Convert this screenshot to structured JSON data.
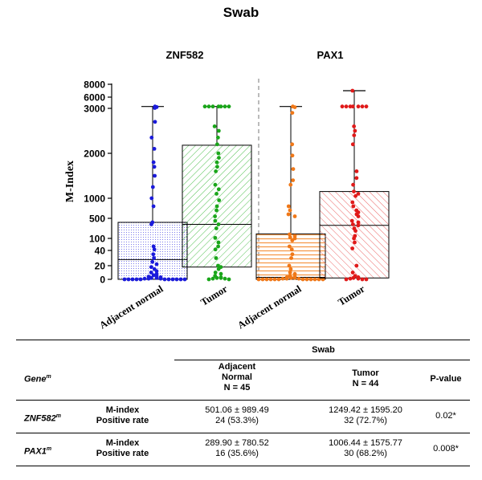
{
  "title": "Swab",
  "chart_data": {
    "type": "box+scatter",
    "title": "Swab",
    "ylabel": "M-Index",
    "yticks": [
      0,
      20,
      40,
      100,
      500,
      1000,
      2000,
      3000,
      6000,
      8000
    ],
    "panels": [
      {
        "gene": "ZNF582",
        "groups": [
          {
            "name": "Adjacent normal",
            "color": "#1a1adb",
            "fill_pattern": "dots",
            "q1": 0,
            "median": 28,
            "q3": 420,
            "max": 3500,
            "points": [
              3500,
              3350,
              3100,
              2700,
              2350,
              2100,
              1800,
              1700,
              1500,
              1250,
              1000,
              800,
              420,
              380,
              60,
              45,
              35,
              30,
              25,
              22,
              18,
              15,
              12,
              10,
              8,
              6,
              5,
              4,
              3,
              2,
              2,
              1,
              1,
              1,
              0,
              0,
              0,
              0,
              0,
              0,
              0,
              0,
              0,
              0,
              0
            ]
          },
          {
            "name": "Tumor",
            "color": "#1aa61a",
            "fill_pattern": "diagonal",
            "q1": 18,
            "median": 380,
            "q3": 2180,
            "max": 3500,
            "points": [
              3500,
              3500,
              3500,
              3500,
              3500,
              3500,
              3500,
              2600,
              2500,
              2350,
              2200,
              2000,
              1900,
              1800,
              1700,
              1600,
              1300,
              1200,
              1100,
              950,
              800,
              700,
              550,
              450,
              380,
              300,
              110,
              80,
              60,
              45,
              30,
              20,
              18,
              15,
              10,
              8,
              5,
              3,
              2,
              2,
              1,
              1,
              0,
              0
            ]
          }
        ]
      },
      {
        "gene": "PAX1",
        "groups": [
          {
            "name": "Adjacent normal",
            "color": "#f07818",
            "fill_pattern": "horizontal",
            "q1": 0,
            "median": 3,
            "q3": 190,
            "max": 3500,
            "points": [
              3500,
              3300,
              2900,
              2200,
              1950,
              1650,
              1400,
              1300,
              800,
              700,
              600,
              550,
              180,
              150,
              120,
              100,
              90,
              60,
              45,
              35,
              30,
              20,
              15,
              10,
              8,
              5,
              4,
              3,
              2,
              2,
              1,
              1,
              1,
              0,
              0,
              0,
              0,
              0,
              0,
              0,
              0,
              0,
              0,
              0,
              0
            ]
          },
          {
            "name": "Tumor",
            "color": "#e01a1a",
            "fill_pattern": "diagonal-reverse",
            "q1": 2,
            "median": 360,
            "q3": 1150,
            "max": 7000,
            "points": [
              7000,
              3500,
              3500,
              3500,
              3500,
              3500,
              3500,
              3500,
              2600,
              2500,
              2400,
              2200,
              1600,
              1450,
              1300,
              1150,
              1100,
              1050,
              900,
              800,
              700,
              650,
              600,
              550,
              450,
              420,
              380,
              360,
              300,
              250,
              150,
              100,
              80,
              50,
              20,
              10,
              5,
              3,
              2,
              1,
              1,
              0,
              0,
              0
            ]
          }
        ]
      }
    ]
  },
  "table": {
    "col_gene": "Gene",
    "col_gene_sup": "m",
    "col_swab": "Swab",
    "col_adj": [
      "Adjacent",
      "Normal",
      "N = 45"
    ],
    "col_tumor": [
      "Tumor",
      "N = 44"
    ],
    "col_p": "P-value",
    "rows": [
      {
        "gene": "ZNF582",
        "sup": "m",
        "metric1": "M-index",
        "metric2": "Positive rate",
        "adj1": "501.06 ± 989.49",
        "adj2": "24 (53.3%)",
        "tum1": "1249.42 ± 1595.20",
        "tum2": "32 (72.7%)",
        "p": "0.02*"
      },
      {
        "gene": "PAX1",
        "sup": "m",
        "metric1": "M-index",
        "metric2": "Positive rate",
        "adj1": "289.90 ± 780.52",
        "adj2": "16 (35.6%)",
        "tum1": "1006.44 ± 1575.77",
        "tum2": "30 (68.2%)",
        "p": "0.008*"
      }
    ]
  }
}
